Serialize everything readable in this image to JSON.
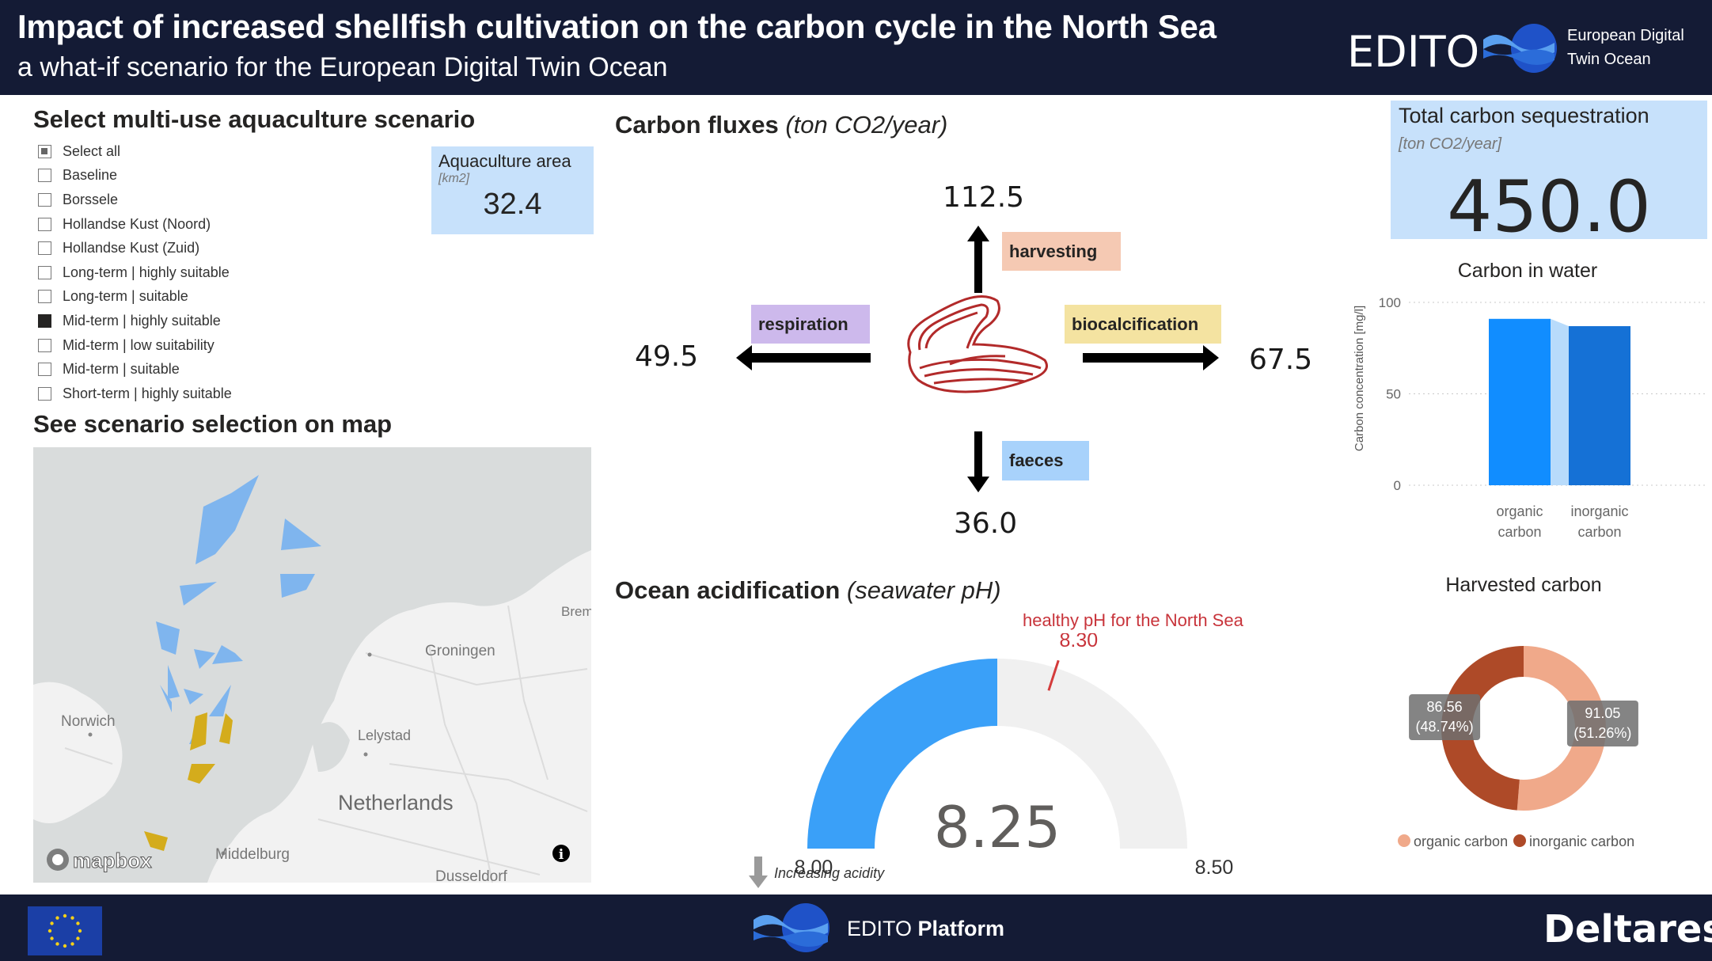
{
  "header": {
    "title": "Impact of increased shellfish cultivation on the carbon cycle in the North Sea",
    "subtitle": "a what-if scenario for the European Digital Twin Ocean",
    "brand": "EDITO",
    "brand_line1": "European Digital",
    "brand_line2": "Twin Ocean"
  },
  "scenarios": {
    "title": "Select multi-use aquaculture scenario",
    "items": [
      {
        "label": "Select all",
        "state": "partial"
      },
      {
        "label": "Baseline",
        "state": "unchecked"
      },
      {
        "label": "Borssele",
        "state": "unchecked"
      },
      {
        "label": "Hollandse Kust (Noord)",
        "state": "unchecked"
      },
      {
        "label": "Hollandse Kust (Zuid)",
        "state": "unchecked"
      },
      {
        "label": "Long-term | highly suitable",
        "state": "unchecked"
      },
      {
        "label": "Long-term | suitable",
        "state": "unchecked"
      },
      {
        "label": "Mid-term | highly suitable",
        "state": "checked"
      },
      {
        "label": "Mid-term | low suitability",
        "state": "unchecked"
      },
      {
        "label": "Mid-term | suitable",
        "state": "unchecked"
      },
      {
        "label": "Short-term | highly suitable",
        "state": "unchecked"
      }
    ]
  },
  "aquaculture_area": {
    "label": "Aquaculture area",
    "unit": "[km2]",
    "value": "32.4"
  },
  "map": {
    "title": "See scenario selection on map",
    "labels": {
      "groningen": "Groningen",
      "norwich": "Norwich",
      "lelystad": "Lelystad",
      "netherlands": "Netherlands",
      "middelburg": "Middelburg",
      "dusseldorf": "Dusseldorf",
      "bremen": "Brem"
    },
    "attribution": "mapbox",
    "info": "i",
    "colors": {
      "water": "#d9dcdc",
      "land": "#f2f2f2",
      "selected": "#d4ac1c",
      "other": "#7fb5ee"
    }
  },
  "fluxes": {
    "title": "Carbon fluxes",
    "unit": "(ton CO2/year)",
    "harvesting": {
      "label": "harvesting",
      "value": "112.5",
      "color": "#f5c9b3"
    },
    "respiration": {
      "label": "respiration",
      "value": "49.5",
      "color": "#cdb9ec"
    },
    "biocalcification": {
      "label": "biocalcification",
      "value": "67.5",
      "color": "#f4e3a1"
    },
    "faeces": {
      "label": "faeces",
      "value": "36.0",
      "color": "#a8d2fb"
    }
  },
  "total": {
    "label": "Total carbon sequestration",
    "unit": "[ton CO2/year]",
    "value": "450.0"
  },
  "acidification": {
    "title": "Ocean acidification",
    "unit": "(seawater pH)",
    "healthy_label": "healthy pH for the North Sea",
    "target_label": "8.30",
    "min_label": "8.00",
    "max_label": "8.50",
    "value_label": "8.25",
    "arrow_label": "Increasing acidity",
    "gauge": {
      "min": 8.0,
      "max": 8.5,
      "value": 8.25,
      "target": 8.3
    },
    "colors": {
      "fill": "#3aa0f8",
      "track": "#f0f0f0",
      "target": "#d43b3b"
    }
  },
  "carbon_water": {
    "title": "Carbon in water",
    "ylabel": "Carbon concentration [mg/l]",
    "tick_labels": [
      "0",
      "50",
      "100"
    ],
    "categories": [
      "organic carbon",
      "inorganic carbon"
    ],
    "category_lines": [
      [
        "organic",
        "carbon"
      ],
      [
        "inorganic",
        "carbon"
      ]
    ]
  },
  "harvested": {
    "title": "Harvested carbon",
    "slice_labels": [
      {
        "value": "91.05",
        "pct": "(51.26%)"
      },
      {
        "value": "86.56",
        "pct": "(48.74%)"
      }
    ],
    "legend": [
      "organic carbon",
      "inorganic carbon"
    ]
  },
  "chart_data": [
    {
      "type": "bar",
      "title": "Carbon in water",
      "ylabel": "Carbon concentration [mg/l]",
      "categories": [
        "organic carbon",
        "inorganic carbon"
      ],
      "values": [
        91,
        87
      ],
      "ylim": [
        0,
        100
      ],
      "grid": true,
      "colors": [
        "#118dff",
        "#1571d6"
      ]
    },
    {
      "type": "pie",
      "title": "Harvested carbon",
      "categories": [
        "organic carbon",
        "inorganic carbon"
      ],
      "values": [
        91.05,
        86.56
      ],
      "percentages": [
        51.26,
        48.74
      ],
      "legend": "bottom",
      "colors": [
        "#f0a98a",
        "#ae4a28"
      ]
    }
  ],
  "footer": {
    "platform_light": "EDITO",
    "platform_bold": "Platform",
    "deltares": "Deltares"
  }
}
